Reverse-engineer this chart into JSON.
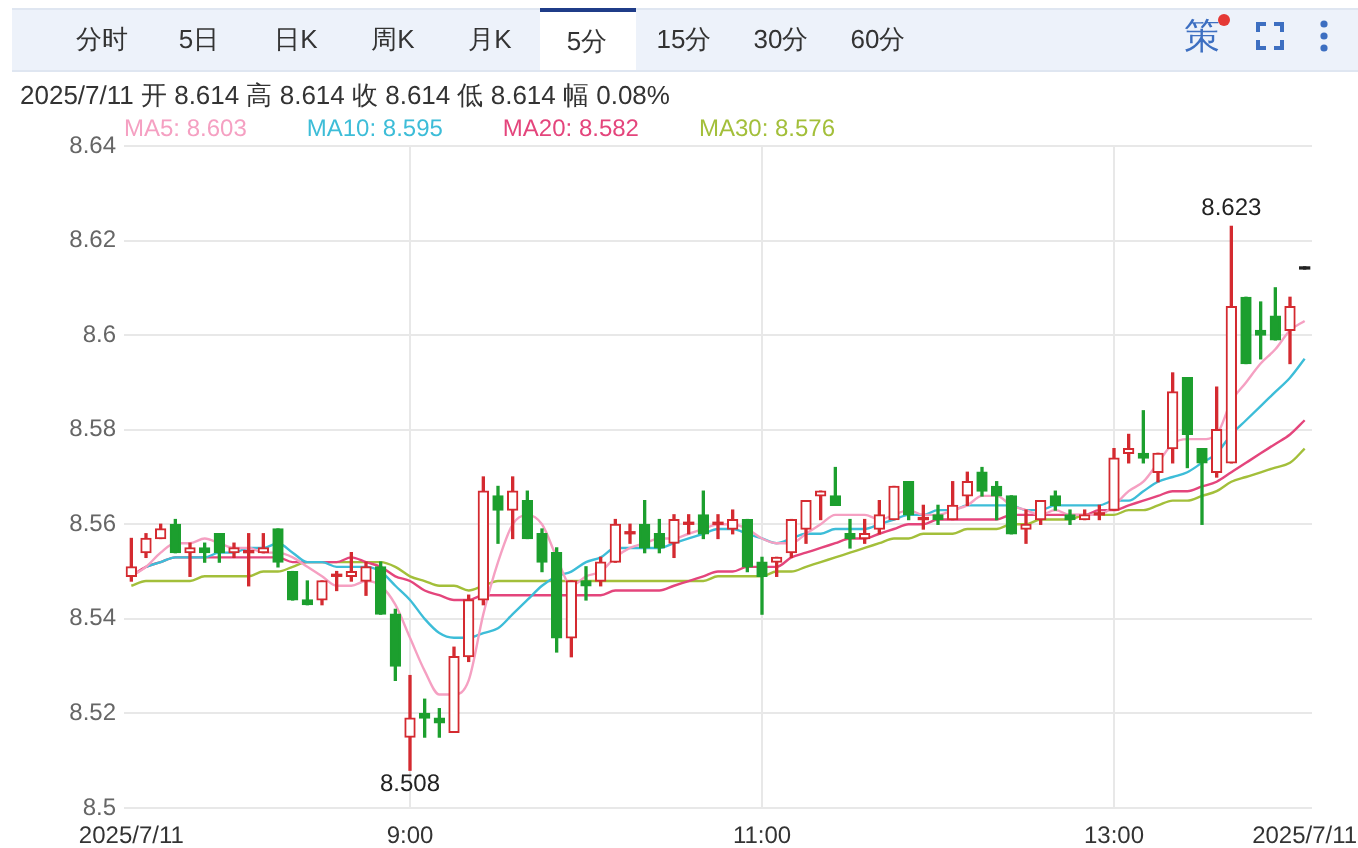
{
  "chart_data": {
    "type": "candlestick",
    "subtitle": "2025/7/11 开 8.614 高 8.614 收 8.614 低 8.614 幅 0.08%",
    "categories": [
      "2025/7/11",
      null,
      null,
      null,
      null,
      null,
      null,
      null,
      null,
      null,
      null,
      null,
      null,
      null,
      null,
      null,
      null,
      null,
      null,
      "9:00",
      null,
      null,
      null,
      null,
      null,
      null,
      null,
      null,
      null,
      null,
      null,
      null,
      null,
      null,
      null,
      null,
      null,
      null,
      null,
      null,
      null,
      null,
      null,
      "11:00",
      null,
      null,
      null,
      null,
      null,
      null,
      null,
      null,
      null,
      null,
      null,
      null,
      null,
      null,
      null,
      null,
      null,
      null,
      null,
      null,
      null,
      null,
      null,
      "13:00",
      null,
      null,
      null,
      null,
      null,
      null,
      null,
      null,
      null,
      null,
      null,
      null,
      "2025/7/11"
    ],
    "ohlc": [
      [
        8.549,
        8.557,
        8.548,
        8.551
      ],
      [
        8.554,
        8.558,
        8.553,
        8.557
      ],
      [
        8.557,
        8.56,
        8.557,
        8.559
      ],
      [
        8.56,
        8.561,
        8.554,
        8.554
      ],
      [
        8.554,
        8.556,
        8.549,
        8.555
      ],
      [
        8.555,
        8.556,
        8.552,
        8.554
      ],
      [
        8.558,
        8.558,
        8.552,
        8.554
      ],
      [
        8.554,
        8.556,
        8.553,
        8.555
      ],
      [
        8.554,
        8.558,
        8.547,
        8.554
      ],
      [
        8.554,
        8.558,
        8.554,
        8.555
      ],
      [
        8.559,
        8.559,
        8.551,
        8.552
      ],
      [
        8.55,
        8.55,
        8.544,
        8.544
      ],
      [
        8.544,
        8.548,
        8.543,
        8.543
      ],
      [
        8.544,
        8.548,
        8.543,
        8.548
      ],
      [
        8.549,
        8.55,
        8.546,
        8.549
      ],
      [
        8.549,
        8.554,
        8.548,
        8.55
      ],
      [
        8.548,
        8.552,
        8.545,
        8.551
      ],
      [
        8.551,
        8.552,
        8.541,
        8.541
      ],
      [
        8.541,
        8.542,
        8.527,
        8.53
      ],
      [
        8.515,
        8.528,
        8.508,
        8.519
      ],
      [
        8.52,
        8.523,
        8.515,
        8.519
      ],
      [
        8.519,
        8.521,
        8.515,
        8.518
      ],
      [
        8.516,
        8.534,
        8.516,
        8.532
      ],
      [
        8.532,
        8.545,
        8.531,
        8.544
      ],
      [
        8.544,
        8.57,
        8.543,
        8.567
      ],
      [
        8.566,
        8.568,
        8.556,
        8.563
      ],
      [
        8.563,
        8.57,
        8.557,
        8.567
      ],
      [
        8.565,
        8.567,
        8.557,
        8.557
      ],
      [
        8.558,
        8.559,
        8.55,
        8.552
      ],
      [
        8.554,
        8.555,
        8.533,
        8.536
      ],
      [
        8.536,
        8.548,
        8.532,
        8.548
      ],
      [
        8.548,
        8.551,
        8.544,
        8.547
      ],
      [
        8.548,
        8.553,
        8.547,
        8.552
      ],
      [
        8.552,
        8.561,
        8.552,
        8.56
      ],
      [
        8.558,
        8.56,
        8.556,
        8.558
      ],
      [
        8.56,
        8.565,
        8.554,
        8.555
      ],
      [
        8.558,
        8.561,
        8.554,
        8.555
      ],
      [
        8.556,
        8.562,
        8.553,
        8.561
      ],
      [
        8.56,
        8.562,
        8.558,
        8.56
      ],
      [
        8.562,
        8.567,
        8.557,
        8.558
      ],
      [
        8.56,
        8.562,
        8.557,
        8.56
      ],
      [
        8.559,
        8.563,
        8.558,
        8.561
      ],
      [
        8.561,
        8.561,
        8.55,
        8.551
      ],
      [
        8.552,
        8.553,
        8.541,
        8.549
      ],
      [
        8.552,
        8.553,
        8.549,
        8.553
      ],
      [
        8.554,
        8.561,
        8.553,
        8.561
      ],
      [
        8.559,
        8.565,
        8.556,
        8.565
      ],
      [
        8.566,
        8.567,
        8.561,
        8.567
      ],
      [
        8.566,
        8.572,
        8.564,
        8.564
      ],
      [
        8.558,
        8.561,
        8.555,
        8.557
      ],
      [
        8.557,
        8.561,
        8.556,
        8.558
      ],
      [
        8.559,
        8.565,
        8.558,
        8.562
      ],
      [
        8.561,
        8.568,
        8.561,
        8.568
      ],
      [
        8.569,
        8.569,
        8.561,
        8.562
      ],
      [
        8.561,
        8.564,
        8.559,
        8.561
      ],
      [
        8.562,
        8.564,
        8.56,
        8.561
      ],
      [
        8.561,
        8.569,
        8.561,
        8.564
      ],
      [
        8.566,
        8.571,
        8.564,
        8.569
      ],
      [
        8.571,
        8.572,
        8.566,
        8.567
      ],
      [
        8.568,
        8.569,
        8.561,
        8.566
      ],
      [
        8.566,
        8.566,
        8.558,
        8.558
      ],
      [
        8.559,
        8.563,
        8.556,
        8.56
      ],
      [
        8.561,
        8.565,
        8.56,
        8.565
      ],
      [
        8.566,
        8.567,
        8.563,
        8.564
      ],
      [
        8.562,
        8.563,
        8.56,
        8.561
      ],
      [
        8.561,
        8.563,
        8.561,
        8.562
      ],
      [
        8.562,
        8.564,
        8.561,
        8.562
      ],
      [
        8.563,
        8.576,
        8.563,
        8.574
      ],
      [
        8.575,
        8.579,
        8.573,
        8.576
      ],
      [
        8.575,
        8.584,
        8.573,
        8.574
      ],
      [
        8.571,
        8.575,
        8.569,
        8.575
      ],
      [
        8.576,
        8.592,
        8.573,
        8.588
      ],
      [
        8.591,
        8.591,
        8.572,
        8.579
      ],
      [
        8.576,
        8.576,
        8.56,
        8.573
      ],
      [
        8.571,
        8.589,
        8.57,
        8.58
      ],
      [
        8.573,
        8.623,
        8.573,
        8.606
      ],
      [
        8.608,
        8.608,
        8.594,
        8.594
      ],
      [
        8.601,
        8.607,
        8.595,
        8.6
      ],
      [
        8.604,
        8.61,
        8.599,
        8.599
      ],
      [
        8.601,
        8.608,
        8.594,
        8.606
      ],
      [
        8.614,
        8.614,
        8.614,
        8.614
      ]
    ],
    "colors": [
      "#d42a30",
      "#d42a30",
      "#d42a30",
      "#1c9f2e",
      "#d42a30",
      "#1c9f2e",
      "#1c9f2e",
      "#d42a30",
      "#d42a30",
      "#d42a30",
      "#1c9f2e",
      "#1c9f2e",
      "#1c9f2e",
      "#d42a30",
      "#d42a30",
      "#d42a30",
      "#d42a30",
      "#1c9f2e",
      "#1c9f2e",
      "#d42a30",
      "#1c9f2e",
      "#1c9f2e",
      "#d42a30",
      "#d42a30",
      "#d42a30",
      "#1c9f2e",
      "#d42a30",
      "#1c9f2e",
      "#1c9f2e",
      "#1c9f2e",
      "#d42a30",
      "#1c9f2e",
      "#d42a30",
      "#d42a30",
      "#d42a30",
      "#1c9f2e",
      "#1c9f2e",
      "#d42a30",
      "#d42a30",
      "#1c9f2e",
      "#d42a30",
      "#d42a30",
      "#1c9f2e",
      "#1c9f2e",
      "#d42a30",
      "#d42a30",
      "#d42a30",
      "#d42a30",
      "#1c9f2e",
      "#1c9f2e",
      "#d42a30",
      "#d42a30",
      "#d42a30",
      "#1c9f2e",
      "#d42a30",
      "#1c9f2e",
      "#d42a30",
      "#d42a30",
      "#1c9f2e",
      "#1c9f2e",
      "#1c9f2e",
      "#d42a30",
      "#d42a30",
      "#1c9f2e",
      "#1c9f2e",
      "#d42a30",
      "#d42a30",
      "#d42a30",
      "#d42a30",
      "#1c9f2e",
      "#d42a30",
      "#d42a30",
      "#1c9f2e",
      "#1c9f2e",
      "#d42a30",
      "#d42a30",
      "#1c9f2e",
      "#1c9f2e",
      "#1c9f2e",
      "#d42a30",
      "#222222"
    ],
    "series": [
      {
        "name": "MA5: 8.603",
        "type": "line",
        "color": "#f5a0c2",
        "values": [
          8.549,
          8.551,
          8.554,
          8.556,
          8.556,
          8.557,
          8.556,
          8.555,
          8.555,
          8.554,
          8.554,
          8.553,
          8.551,
          8.549,
          8.547,
          8.547,
          8.548,
          8.547,
          8.543,
          8.536,
          8.529,
          8.524,
          8.524,
          8.527,
          8.541,
          8.552,
          8.56,
          8.562,
          8.56,
          8.553,
          8.547,
          8.549,
          8.55,
          8.553,
          8.555,
          8.556,
          8.557,
          8.557,
          8.558,
          8.559,
          8.56,
          8.56,
          8.559,
          8.557,
          8.556,
          8.556,
          8.558,
          8.56,
          8.562,
          8.562,
          8.562,
          8.561,
          8.562,
          8.563,
          8.562,
          8.562,
          8.563,
          8.564,
          8.566,
          8.566,
          8.564,
          8.563,
          8.562,
          8.563,
          8.562,
          8.562,
          8.562,
          8.564,
          8.567,
          8.569,
          8.573,
          8.577,
          8.578,
          8.578,
          8.579,
          8.586,
          8.59,
          8.594,
          8.597,
          8.601,
          8.603
        ]
      },
      {
        "name": "MA10: 8.595",
        "type": "line",
        "color": "#3dbdd8",
        "values": [
          null,
          8.551,
          8.552,
          8.553,
          8.553,
          8.553,
          8.554,
          8.554,
          8.555,
          8.555,
          8.556,
          8.554,
          8.552,
          8.552,
          8.551,
          8.551,
          8.551,
          8.55,
          8.547,
          8.544,
          8.54,
          8.537,
          8.536,
          8.536,
          8.537,
          8.538,
          8.541,
          8.544,
          8.547,
          8.549,
          8.55,
          8.552,
          8.553,
          8.555,
          8.555,
          8.555,
          8.555,
          8.556,
          8.557,
          8.558,
          8.559,
          8.559,
          8.558,
          8.557,
          8.556,
          8.557,
          8.558,
          8.558,
          8.559,
          8.559,
          8.559,
          8.56,
          8.561,
          8.562,
          8.562,
          8.563,
          8.563,
          8.564,
          8.564,
          8.564,
          8.564,
          8.563,
          8.563,
          8.564,
          8.564,
          8.564,
          8.564,
          8.565,
          8.565,
          8.567,
          8.569,
          8.57,
          8.571,
          8.573,
          8.575,
          8.579,
          8.582,
          8.585,
          8.588,
          8.591,
          8.595
        ]
      },
      {
        "name": "MA20: 8.582",
        "type": "line",
        "color": "#e4457c",
        "values": [
          8.549,
          8.551,
          8.552,
          8.553,
          8.553,
          8.553,
          8.553,
          8.553,
          8.553,
          8.553,
          8.553,
          8.552,
          8.552,
          8.552,
          8.552,
          8.553,
          8.552,
          8.551,
          8.549,
          8.548,
          8.546,
          8.545,
          8.544,
          8.544,
          8.545,
          8.545,
          8.545,
          8.545,
          8.545,
          8.545,
          8.545,
          8.545,
          8.545,
          8.546,
          8.546,
          8.546,
          8.546,
          8.547,
          8.548,
          8.549,
          8.55,
          8.55,
          8.551,
          8.551,
          8.551,
          8.553,
          8.554,
          8.555,
          8.556,
          8.557,
          8.557,
          8.558,
          8.559,
          8.56,
          8.56,
          8.561,
          8.561,
          8.561,
          8.561,
          8.561,
          8.562,
          8.562,
          8.562,
          8.562,
          8.562,
          8.562,
          8.563,
          8.563,
          8.564,
          8.565,
          8.566,
          8.567,
          8.567,
          8.568,
          8.569,
          8.571,
          8.573,
          8.575,
          8.577,
          8.579,
          8.582
        ]
      },
      {
        "name": "MA30: 8.576",
        "type": "line",
        "color": "#a3bf3a",
        "values": [
          8.547,
          8.548,
          8.548,
          8.548,
          8.548,
          8.549,
          8.549,
          8.549,
          8.549,
          8.55,
          8.55,
          8.551,
          8.552,
          8.552,
          8.552,
          8.552,
          8.552,
          8.552,
          8.551,
          8.549,
          8.548,
          8.547,
          8.547,
          8.546,
          8.547,
          8.548,
          8.548,
          8.548,
          8.548,
          8.548,
          8.548,
          8.548,
          8.548,
          8.548,
          8.548,
          8.548,
          8.548,
          8.548,
          8.548,
          8.548,
          8.549,
          8.549,
          8.549,
          8.549,
          8.55,
          8.55,
          8.551,
          8.552,
          8.553,
          8.554,
          8.555,
          8.556,
          8.557,
          8.557,
          8.558,
          8.558,
          8.558,
          8.559,
          8.559,
          8.559,
          8.56,
          8.56,
          8.561,
          8.561,
          8.561,
          8.562,
          8.562,
          8.562,
          8.563,
          8.563,
          8.564,
          8.565,
          8.565,
          8.566,
          8.567,
          8.569,
          8.57,
          8.571,
          8.572,
          8.573,
          8.576
        ]
      }
    ],
    "ylim": [
      8.5,
      8.64
    ],
    "yticks": [
      8.5,
      8.52,
      8.54,
      8.56,
      8.58,
      8.6,
      8.62,
      8.64
    ],
    "grid": true,
    "legend": "top left",
    "marker": "none",
    "annotations": [
      "分时",
      "5日",
      "日K",
      "周K",
      "月K",
      "5分",
      "15分",
      "30分",
      "60分",
      "策",
      {
        "text": "8.623",
        "y": 8.623
      },
      {
        "text": "8.508",
        "y": 8.508
      }
    ]
  }
}
